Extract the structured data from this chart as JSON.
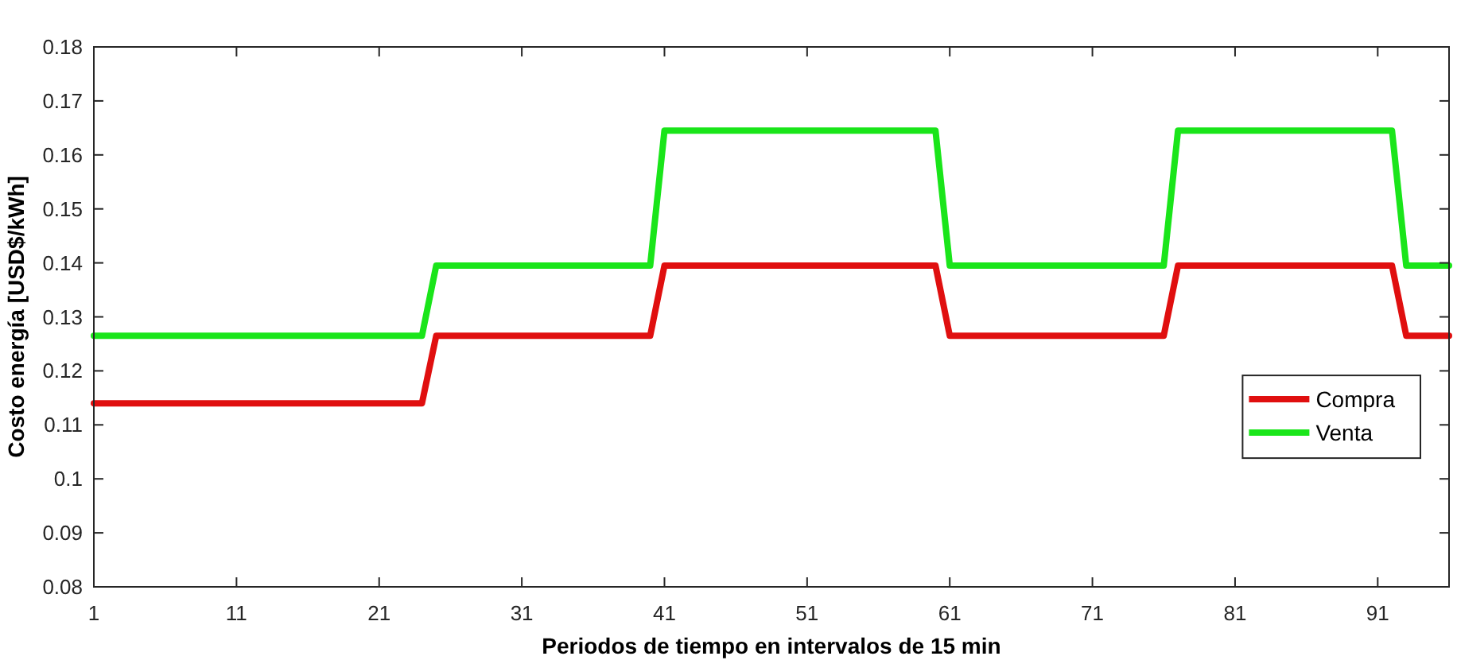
{
  "chart_data": {
    "type": "line",
    "xlabel": "Periodos de tiempo en intervalos de 15 min",
    "ylabel": "Costo energía [USD$/kWh]",
    "xlim": [
      1,
      96
    ],
    "xticks": [
      1,
      11,
      21,
      31,
      41,
      51,
      61,
      71,
      81,
      91
    ],
    "ylim": [
      0.08,
      0.18
    ],
    "yticks": [
      0.08,
      0.09,
      0.1,
      0.11,
      0.12,
      0.13,
      0.14,
      0.15,
      0.16,
      0.17,
      0.18
    ],
    "legend": "right",
    "line_style": "solid",
    "series": [
      {
        "name": "Compra",
        "color": "#e00f0f",
        "x": [
          1,
          24,
          25,
          40,
          41,
          60,
          61,
          76,
          77,
          92,
          93,
          96
        ],
        "values": [
          0.114,
          0.114,
          0.1265,
          0.1265,
          0.1395,
          0.1395,
          0.1265,
          0.1265,
          0.1395,
          0.1395,
          0.1265,
          0.1265
        ]
      },
      {
        "name": "Venta",
        "color": "#1ae51a",
        "x": [
          1,
          24,
          25,
          40,
          41,
          60,
          61,
          76,
          77,
          92,
          93,
          96
        ],
        "values": [
          0.1265,
          0.1265,
          0.1395,
          0.1395,
          0.1645,
          0.1645,
          0.1395,
          0.1395,
          0.1645,
          0.1645,
          0.1395,
          0.1395
        ]
      }
    ]
  }
}
